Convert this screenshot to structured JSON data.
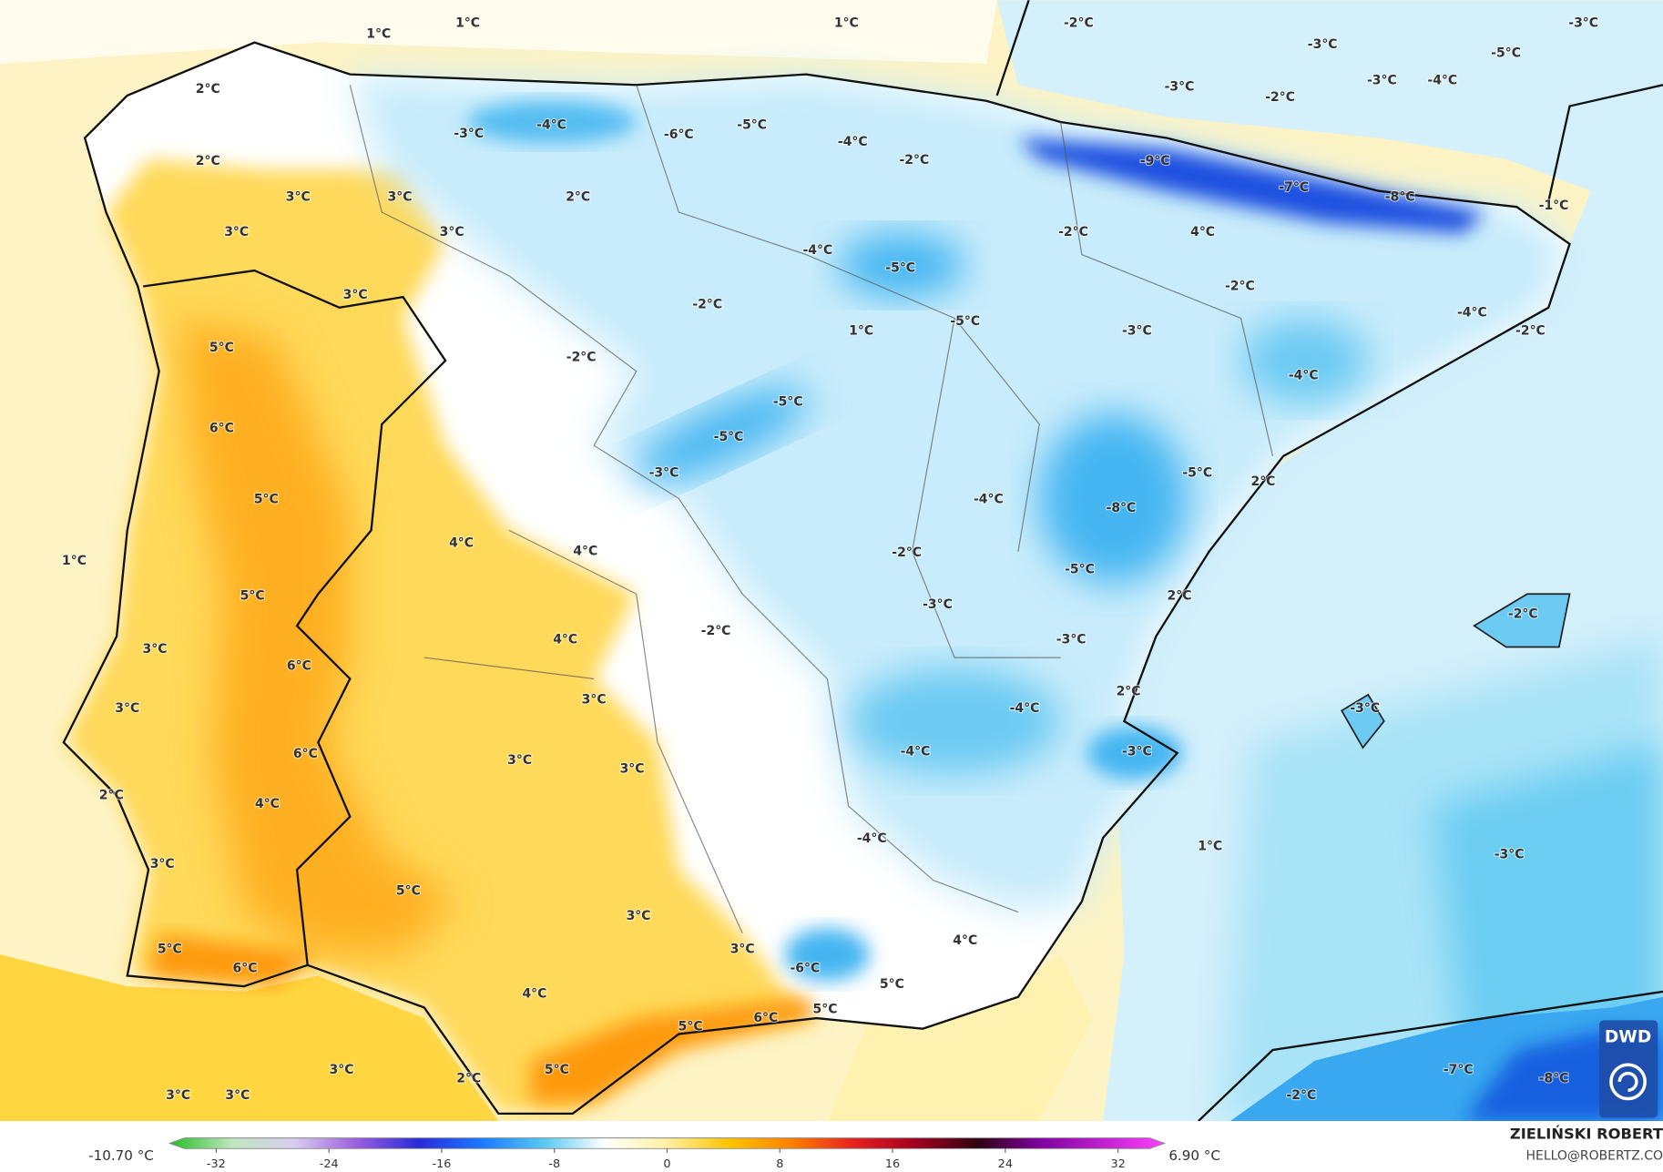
{
  "map": {
    "labels": [
      "1°C",
      "1°C",
      "1°C",
      "-2°C",
      "-3°C",
      "-5°C",
      "-3°C",
      "-3°C",
      "-3°C",
      "-4°C",
      "-2°C",
      "2°C",
      "-3°C",
      "-4°C",
      "-6°C",
      "-5°C",
      "-4°C",
      "-2°C",
      "-9°C",
      "-7°C",
      "-8°C",
      "-1°C",
      "2°C",
      "3°C",
      "3°C",
      "2°C",
      "3°C",
      "3°C",
      "-2°C",
      "4°C",
      "-4°C",
      "-5°C",
      "-2°C",
      "-4°C",
      "3°C",
      "-2°C",
      "1°C",
      "-5°C",
      "-3°C",
      "-2°C",
      "5°C",
      "-2°C",
      "-4°C",
      "-5°C",
      "6°C",
      "-5°C",
      "-3°C",
      "-5°C",
      "2°C",
      "5°C",
      "-4°C",
      "-8°C",
      "1°C",
      "4°C",
      "4°C",
      "-2°C",
      "-5°C",
      "5°C",
      "-3°C",
      "2°C",
      "-2°C",
      "-2°C",
      "4°C",
      "-3°C",
      "3°C",
      "6°C",
      "3°C",
      "2°C",
      "-4°C",
      "-3°C",
      "3°C",
      "6°C",
      "3°C",
      "3°C",
      "-4°C",
      "-3°C",
      "2°C",
      "4°C",
      "-4°C",
      "1°C",
      "-3°C",
      "3°C",
      "5°C",
      "3°C",
      "4°C",
      "3°C",
      "5°C",
      "6°C",
      "-6°C",
      "5°C",
      "4°C",
      "5°C",
      "6°C",
      "5°C",
      "3°C",
      "2°C",
      "5°C",
      "3°C",
      "3°C",
      "-2°C",
      "-7°C",
      "-8°C"
    ]
  },
  "legend": {
    "min_label": "-10.70 °C",
    "max_label": "6.90 °C",
    "ticks": [
      -32,
      -24,
      -16,
      -8,
      0,
      8,
      16,
      24,
      32
    ],
    "range": [
      -35.3,
      35.3
    ],
    "colors": [
      "#22c022",
      "#bfe6bf",
      "#d9cdef",
      "#9b5fe0",
      "#2a2ad8",
      "#1a78ff",
      "#55c8f2",
      "#ffffff",
      "#fff0a0",
      "#ffc400",
      "#ff8000",
      "#e82020",
      "#a00020",
      "#300010",
      "#8000a0",
      "#c020d0",
      "#ff40ff"
    ]
  },
  "credit": {
    "author": "ZIELIŃSKI ROBERT",
    "email": "HELLO@ROBERTZ.CO",
    "logo": "DWD"
  }
}
